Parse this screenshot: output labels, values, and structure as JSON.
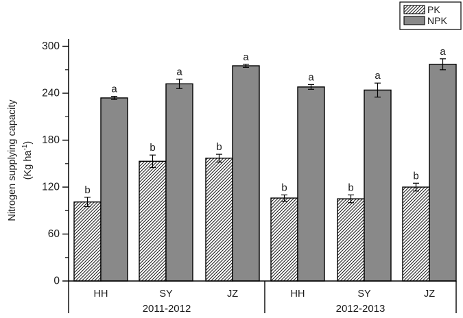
{
  "figure": {
    "ylabel": {
      "line1": "Nitrogen supplying capacity",
      "line2_pre": "(Kg ha",
      "line2_sup": "-1",
      "line2_post": ")"
    },
    "legend": {
      "items": [
        {
          "label": "PK",
          "style": "hatched"
        },
        {
          "label": "NPK",
          "style": "solid-gray"
        }
      ]
    }
  },
  "chart_data": {
    "type": "bar",
    "title": "",
    "ylabel": "Nitrogen supplying capacity (Kg ha-1)",
    "ylim": [
      0,
      300
    ],
    "ytick_major": 60,
    "ytick_minor": 30,
    "grid": false,
    "legend_position": "top-right",
    "sections": [
      {
        "label": "2011-2012",
        "categories": [
          "HH",
          "SY",
          "JZ"
        ]
      },
      {
        "label": "2012-2013",
        "categories": [
          "HH",
          "SY",
          "JZ"
        ]
      }
    ],
    "categories": [
      "HH",
      "SY",
      "JZ",
      "HH",
      "SY",
      "JZ"
    ],
    "series": [
      {
        "name": "PK",
        "style": "hatched",
        "values": [
          101,
          153,
          157,
          106,
          105,
          120
        ],
        "errors": [
          6,
          8,
          5,
          4,
          5,
          5
        ],
        "sig_letters": [
          "b",
          "b",
          "b",
          "b",
          "b",
          "b"
        ]
      },
      {
        "name": "NPK",
        "style": "solid-gray",
        "values": [
          234,
          252,
          275,
          248,
          244,
          277
        ],
        "errors": [
          2,
          6,
          2,
          3,
          9,
          7
        ],
        "sig_letters": [
          "a",
          "a",
          "a",
          "a",
          "a",
          "a"
        ]
      }
    ],
    "colors": {
      "npk_fill": "#898989",
      "pk_fill": "#ffffff",
      "hatch_line": "#000000",
      "axis": "#000000",
      "background": "#ffffff"
    }
  }
}
